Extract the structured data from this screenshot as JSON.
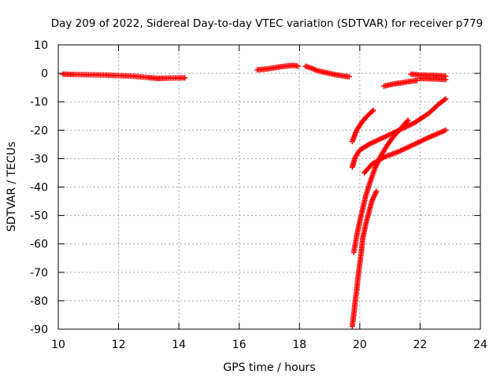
{
  "chart_data": {
    "type": "scatter",
    "title": "Day 209 of 2022, Sidereal Day-to-day VTEC variation (SDTVAR) for receiver p779",
    "xlabel": "GPS time / hours",
    "ylabel": "SDTVAR / TECUs",
    "xlim": [
      10,
      24
    ],
    "ylim": [
      -90,
      10
    ],
    "x_ticks": [
      10,
      12,
      14,
      16,
      18,
      20,
      22,
      24
    ],
    "y_ticks": [
      10,
      0,
      -10,
      -20,
      -30,
      -40,
      -50,
      -60,
      -70,
      -80,
      -90
    ],
    "grid": true,
    "marker": "+",
    "color": "#ff0000",
    "series": [
      {
        "points": [
          [
            10.15,
            -0.3
          ],
          [
            10.5,
            -0.4
          ],
          [
            11.0,
            -0.5
          ],
          [
            11.5,
            -0.6
          ],
          [
            12.0,
            -0.8
          ],
          [
            12.5,
            -1.0
          ],
          [
            13.0,
            -1.5
          ],
          [
            13.3,
            -1.8
          ],
          [
            13.6,
            -1.7
          ],
          [
            14.0,
            -1.6
          ],
          [
            14.2,
            -1.6
          ]
        ]
      },
      {
        "points": [
          [
            16.6,
            1.2
          ],
          [
            16.9,
            1.5
          ],
          [
            17.2,
            2.0
          ],
          [
            17.5,
            2.5
          ],
          [
            17.8,
            2.8
          ],
          [
            17.95,
            2.5
          ]
        ]
      },
      {
        "points": [
          [
            18.2,
            2.5
          ],
          [
            18.4,
            1.8
          ],
          [
            18.6,
            0.9
          ],
          [
            18.9,
            0.2
          ],
          [
            19.2,
            -0.5
          ],
          [
            19.5,
            -1.0
          ],
          [
            19.65,
            -1.2
          ]
        ]
      },
      {
        "points": [
          [
            20.8,
            -4.5
          ],
          [
            21.1,
            -3.8
          ],
          [
            21.4,
            -3.3
          ],
          [
            21.7,
            -2.8
          ],
          [
            21.9,
            -2.5
          ]
        ]
      },
      {
        "points": [
          [
            21.7,
            -0.3
          ],
          [
            22.0,
            -0.6
          ],
          [
            22.3,
            -0.7
          ],
          [
            22.6,
            -0.8
          ],
          [
            22.85,
            -1.0
          ]
        ]
      },
      {
        "points": [
          [
            22.0,
            -1.8
          ],
          [
            22.3,
            -1.9
          ],
          [
            22.6,
            -2.0
          ],
          [
            22.85,
            -2.2
          ]
        ]
      },
      {
        "points": [
          [
            19.75,
            -24
          ],
          [
            19.9,
            -20
          ],
          [
            20.05,
            -17.5
          ],
          [
            20.2,
            -15.5
          ],
          [
            20.35,
            -14
          ],
          [
            20.45,
            -13
          ]
        ]
      },
      {
        "points": [
          [
            19.75,
            -33
          ],
          [
            19.85,
            -29.5
          ],
          [
            20.0,
            -27
          ],
          [
            20.3,
            -25
          ],
          [
            20.8,
            -22.5
          ],
          [
            21.3,
            -20
          ],
          [
            21.8,
            -17.5
          ],
          [
            22.3,
            -14
          ],
          [
            22.6,
            -11
          ],
          [
            22.85,
            -9
          ]
        ]
      },
      {
        "points": [
          [
            20.15,
            -35
          ],
          [
            20.4,
            -32
          ],
          [
            20.8,
            -29.5
          ],
          [
            21.3,
            -27.5
          ],
          [
            21.8,
            -25
          ],
          [
            22.3,
            -22.5
          ],
          [
            22.85,
            -20
          ]
        ]
      },
      {
        "points": [
          [
            19.8,
            -63
          ],
          [
            19.9,
            -57
          ],
          [
            20.0,
            -52
          ],
          [
            20.1,
            -47.5
          ],
          [
            20.2,
            -43
          ],
          [
            20.35,
            -38
          ],
          [
            20.5,
            -33.5
          ],
          [
            20.7,
            -29
          ],
          [
            20.9,
            -25.5
          ],
          [
            21.1,
            -22.5
          ],
          [
            21.35,
            -19.5
          ],
          [
            21.6,
            -16.5
          ]
        ]
      },
      {
        "points": [
          [
            19.75,
            -89
          ],
          [
            19.8,
            -85
          ],
          [
            19.85,
            -80
          ],
          [
            19.9,
            -76
          ],
          [
            19.95,
            -71
          ],
          [
            20.0,
            -67
          ],
          [
            20.05,
            -63
          ],
          [
            20.1,
            -58
          ],
          [
            20.2,
            -53
          ],
          [
            20.3,
            -49
          ],
          [
            20.4,
            -45
          ],
          [
            20.55,
            -41.5
          ]
        ]
      }
    ]
  }
}
